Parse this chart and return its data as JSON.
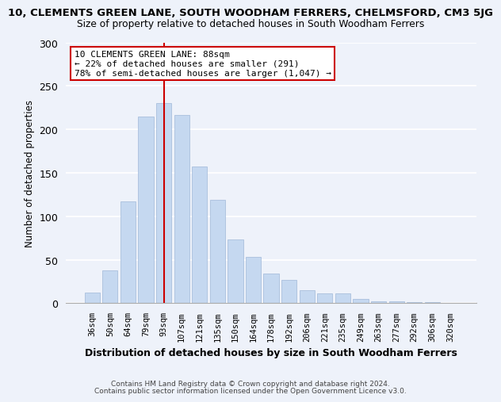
{
  "title": "10, CLEMENTS GREEN LANE, SOUTH WOODHAM FERRERS, CHELMSFORD, CM3 5JG",
  "subtitle": "Size of property relative to detached houses in South Woodham Ferrers",
  "xlabel": "Distribution of detached houses by size in South Woodham Ferrers",
  "ylabel": "Number of detached properties",
  "bar_labels": [
    "36sqm",
    "50sqm",
    "64sqm",
    "79sqm",
    "93sqm",
    "107sqm",
    "121sqm",
    "135sqm",
    "150sqm",
    "164sqm",
    "178sqm",
    "192sqm",
    "206sqm",
    "221sqm",
    "235sqm",
    "249sqm",
    "263sqm",
    "277sqm",
    "292sqm",
    "306sqm",
    "320sqm"
  ],
  "bar_values": [
    12,
    38,
    117,
    215,
    230,
    217,
    157,
    119,
    73,
    53,
    34,
    27,
    15,
    11,
    11,
    5,
    2,
    2,
    1,
    1,
    0
  ],
  "bar_color": "#c5d8f0",
  "bar_edge_color": "#a0b8d8",
  "vline_x": 4.0,
  "vline_color": "#cc0000",
  "annotation_title": "10 CLEMENTS GREEN LANE: 88sqm",
  "annotation_line1": "← 22% of detached houses are smaller (291)",
  "annotation_line2": "78% of semi-detached houses are larger (1,047) →",
  "annotation_box_color": "#ffffff",
  "annotation_box_edge": "#cc0000",
  "ylim": [
    0,
    300
  ],
  "yticks": [
    0,
    50,
    100,
    150,
    200,
    250,
    300
  ],
  "footer1": "Contains HM Land Registry data © Crown copyright and database right 2024.",
  "footer2": "Contains public sector information licensed under the Open Government Licence v3.0.",
  "background_color": "#eef2fa",
  "title_fontsize": 9.5,
  "subtitle_fontsize": 8.8
}
